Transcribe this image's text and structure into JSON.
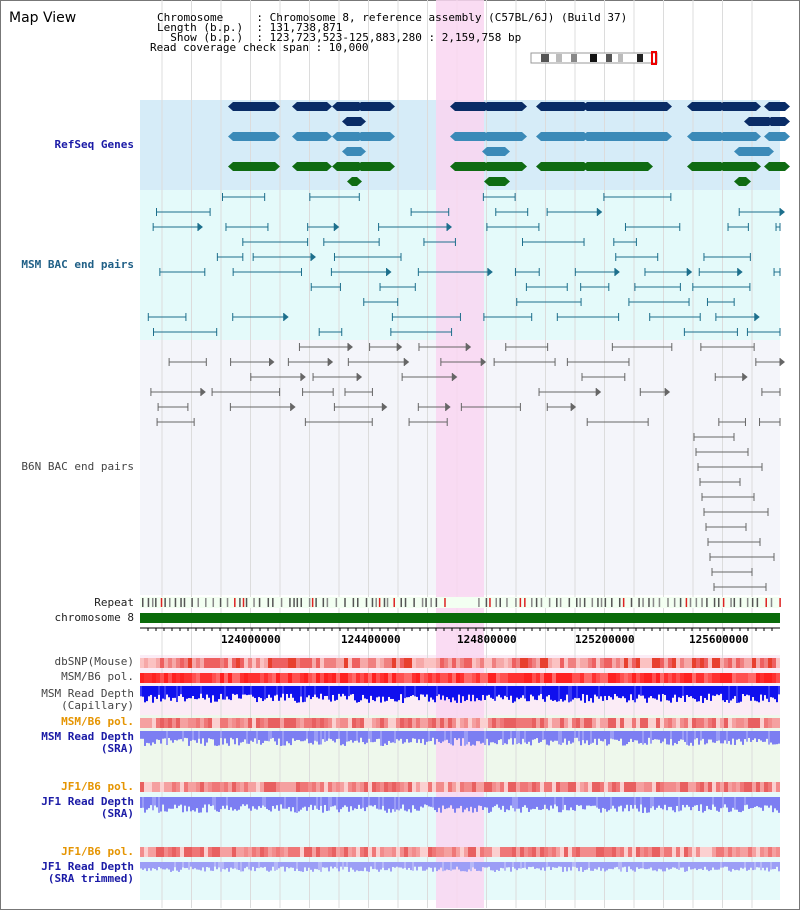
{
  "title": "Map View",
  "header": {
    "lines": [
      "Chromosome     : Chromosome 8, reference assembly (C57BL/6J) (Build 37)",
      "Length (b.p.)  : 131,738,871",
      "  Show (b.p.)  : 123,723,523-125,883,280 : 2,159,758 bp",
      "Read coverage check span : 10,000"
    ]
  },
  "tracks": {
    "refseq": "RefSeq Genes",
    "msm_bac": "MSM BAC end pairs",
    "b6n_bac": "B6N BAC end pairs",
    "repeat": "Repeat",
    "chromosome": "chromosome 8",
    "dbsnp": "dbSNP(Mouse)",
    "msm_b6_pol": "MSM/B6 pol.",
    "msm_depth_cap_1": "MSM Read Depth",
    "msm_depth_cap_2": "(Capillary)",
    "msm_b6_pol_sra": "MSM/B6 pol.",
    "msm_depth_sra_1": "MSM Read Depth",
    "msm_depth_sra_2": "(SRA)",
    "jf1_b6_pol": "JF1/B6 pol.",
    "jf1_depth_1": "JF1 Read Depth",
    "jf1_depth_2": "(SRA)",
    "jf1_b6_pol_trim": "JF1/B6 pol.",
    "jf1_trim_1": "JF1 Read Depth",
    "jf1_trim_2": "(SRA trimmed)"
  },
  "axis": {
    "ticks": [
      "124000000",
      "124400000",
      "124800000",
      "125200000",
      "125600000"
    ]
  },
  "colors": {
    "refseq_bg": "#d6ecf8",
    "msm_bg": "#e4fafa",
    "b6n_bg": "#f4f5fa",
    "highlight": "#f9d6f1",
    "gene_navy": "#0a2c66",
    "gene_steel": "#3b8ab8",
    "gene_green": "#0f6b12",
    "bac_teal": "#1d6f8c",
    "bac_gray": "#666666",
    "snp_red": "#e8402e",
    "depth_blue": "#1010ee",
    "depth_light": "#7c7ef2"
  }
}
